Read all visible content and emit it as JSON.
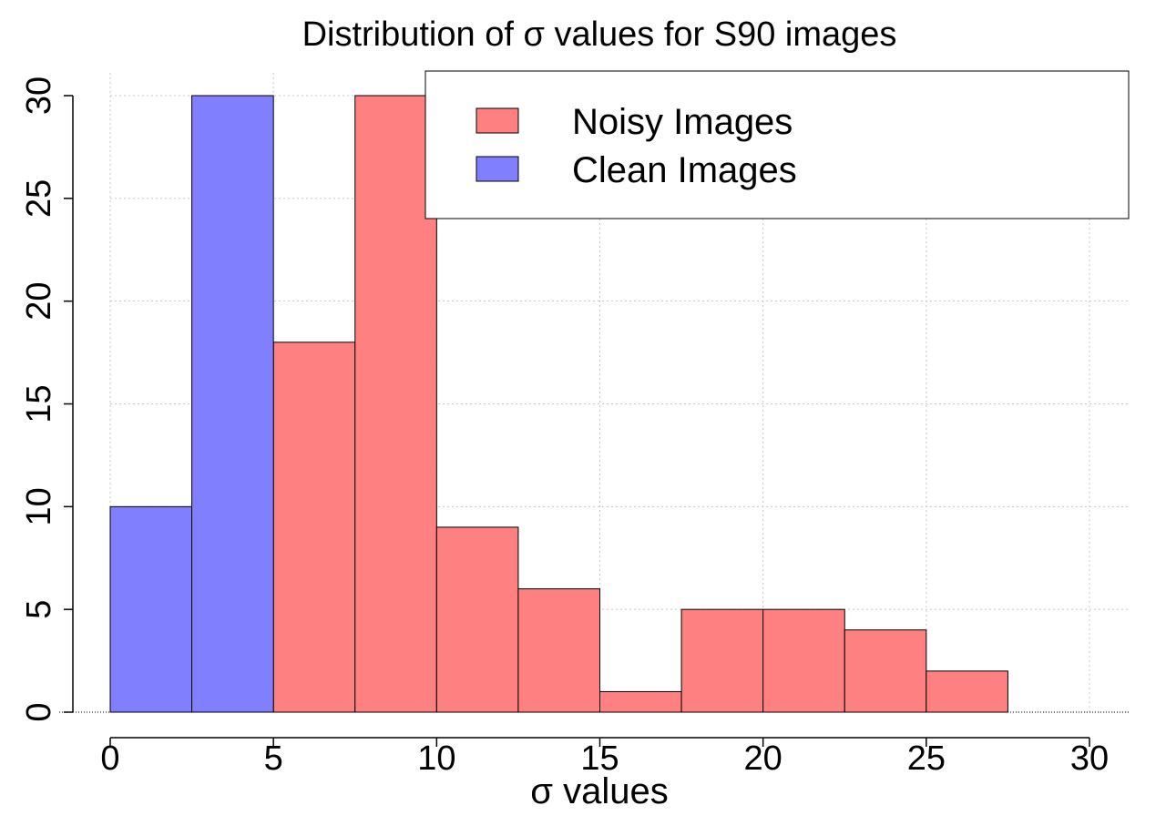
{
  "chart_data": {
    "type": "bar",
    "title": "Distribution of σ values for S90 images",
    "xlabel": "σ values",
    "ylabel": "",
    "xlim": [
      0,
      30
    ],
    "ylim": [
      0,
      30
    ],
    "x_ticks": [
      "0",
      "5",
      "10",
      "15",
      "20",
      "25",
      "30"
    ],
    "y_ticks": [
      "0",
      "5",
      "10",
      "15",
      "20",
      "25",
      "30"
    ],
    "grid": true,
    "legend_position": "top-right",
    "bin_width": 2.5,
    "series": [
      {
        "name": "Noisy Images",
        "color": "#ff8080",
        "bins": [
          {
            "x0": 5,
            "x1": 7.5,
            "count": 18
          },
          {
            "x0": 7.5,
            "x1": 10,
            "count": 30
          },
          {
            "x0": 10,
            "x1": 12.5,
            "count": 9
          },
          {
            "x0": 12.5,
            "x1": 15,
            "count": 6
          },
          {
            "x0": 15,
            "x1": 17.5,
            "count": 1
          },
          {
            "x0": 17.5,
            "x1": 20,
            "count": 5
          },
          {
            "x0": 20,
            "x1": 22.5,
            "count": 5
          },
          {
            "x0": 22.5,
            "x1": 25,
            "count": 4
          },
          {
            "x0": 25,
            "x1": 27.5,
            "count": 2
          }
        ]
      },
      {
        "name": "Clean Images",
        "color": "#8080ff",
        "bins": [
          {
            "x0": 0,
            "x1": 2.5,
            "count": 10
          },
          {
            "x0": 2.5,
            "x1": 5,
            "count": 30
          }
        ]
      }
    ]
  }
}
